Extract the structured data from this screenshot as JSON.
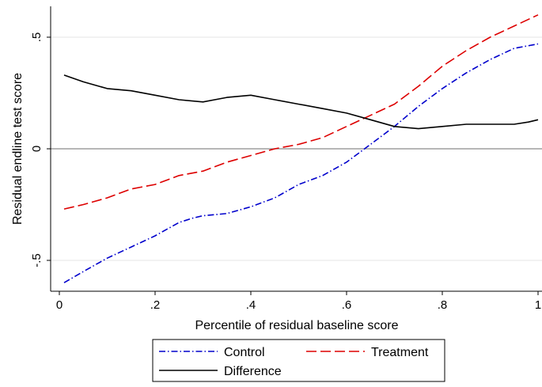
{
  "chart_data": {
    "type": "line",
    "title": "",
    "xlabel": "Percentile of residual baseline score",
    "ylabel": "Residual endline test score",
    "xlim": [
      0,
      1
    ],
    "ylim": [
      -0.6,
      0.6
    ],
    "x_ticks": [
      0,
      0.2,
      0.4,
      0.6,
      0.8,
      1
    ],
    "x_tick_labels": [
      "0",
      ".2",
      ".4",
      ".6",
      ".8",
      "1"
    ],
    "y_ticks": [
      -0.5,
      0,
      0.5
    ],
    "y_tick_labels": [
      "-.5",
      "0",
      ".5"
    ],
    "reference_line_y": 0,
    "grid": "horizontal",
    "legend_position": "bottom",
    "series": [
      {
        "name": "Control",
        "color": "#0000cc",
        "style": "dash-dot",
        "x": [
          0.01,
          0.05,
          0.1,
          0.15,
          0.2,
          0.25,
          0.28,
          0.3,
          0.35,
          0.4,
          0.45,
          0.5,
          0.55,
          0.6,
          0.65,
          0.7,
          0.75,
          0.8,
          0.85,
          0.9,
          0.95,
          1.0
        ],
        "y": [
          -0.6,
          -0.55,
          -0.49,
          -0.44,
          -0.39,
          -0.33,
          -0.31,
          -0.3,
          -0.29,
          -0.26,
          -0.22,
          -0.16,
          -0.12,
          -0.06,
          0.02,
          0.1,
          0.19,
          0.27,
          0.34,
          0.4,
          0.45,
          0.47
        ]
      },
      {
        "name": "Treatment",
        "color": "#dd0000",
        "style": "long-dash",
        "x": [
          0.01,
          0.05,
          0.1,
          0.15,
          0.2,
          0.25,
          0.3,
          0.35,
          0.4,
          0.45,
          0.5,
          0.55,
          0.6,
          0.65,
          0.7,
          0.75,
          0.8,
          0.85,
          0.9,
          0.95,
          1.0
        ],
        "y": [
          -0.27,
          -0.25,
          -0.22,
          -0.18,
          -0.16,
          -0.12,
          -0.1,
          -0.06,
          -0.03,
          0.0,
          0.02,
          0.05,
          0.1,
          0.15,
          0.2,
          0.28,
          0.37,
          0.44,
          0.5,
          0.55,
          0.6
        ]
      },
      {
        "name": "Difference",
        "color": "#000000",
        "style": "solid",
        "x": [
          0.01,
          0.05,
          0.1,
          0.15,
          0.2,
          0.25,
          0.3,
          0.35,
          0.4,
          0.45,
          0.5,
          0.55,
          0.6,
          0.65,
          0.7,
          0.75,
          0.8,
          0.85,
          0.9,
          0.95,
          0.98,
          1.0
        ],
        "y": [
          0.33,
          0.3,
          0.27,
          0.26,
          0.24,
          0.22,
          0.21,
          0.23,
          0.24,
          0.22,
          0.2,
          0.18,
          0.16,
          0.13,
          0.1,
          0.09,
          0.1,
          0.11,
          0.11,
          0.11,
          0.12,
          0.13
        ]
      }
    ]
  }
}
